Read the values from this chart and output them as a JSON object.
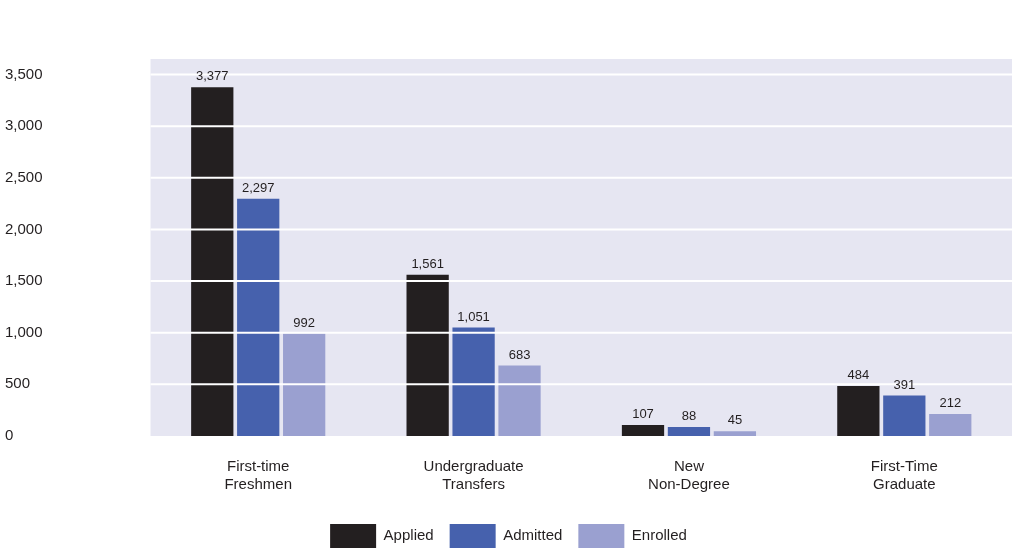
{
  "chart_data": {
    "type": "bar",
    "categories": [
      "First-time Freshmen",
      "Undergraduate Transfers",
      "New Non-Degree",
      "First-Time Graduate"
    ],
    "series": [
      {
        "name": "Applied",
        "color": "#231f20",
        "values": [
          3377,
          1561,
          107,
          484
        ],
        "value_labels": [
          "3,377",
          "1,561",
          "107",
          "484"
        ]
      },
      {
        "name": "Admitted",
        "color": "#4661ad",
        "values": [
          2297,
          1051,
          88,
          391
        ],
        "value_labels": [
          "2,297",
          "1,051",
          "88",
          "391"
        ]
      },
      {
        "name": "Enrolled",
        "color": "#9aa0d0",
        "values": [
          992,
          683,
          45,
          212
        ],
        "value_labels": [
          "992",
          "683",
          "45",
          "212"
        ]
      }
    ],
    "ylim": [
      0,
      3650
    ],
    "yticks": [
      0,
      {
        "value": 500,
        "label": "500"
      },
      {
        "value": 1000,
        "label": "1,000"
      },
      {
        "value": 1500,
        "label": "1,500"
      },
      {
        "value": 2000,
        "label": "2,000"
      },
      {
        "value": 2500,
        "label": "2,500"
      },
      {
        "value": 3000,
        "label": "3,000"
      },
      {
        "value": 3500,
        "label": "3,500"
      }
    ],
    "grid": "y",
    "legend": "bottom"
  }
}
